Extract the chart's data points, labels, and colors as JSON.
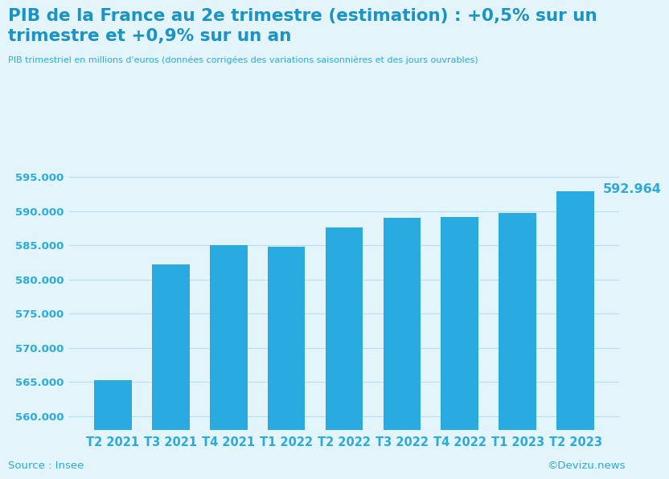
{
  "categories": [
    "T2 2021",
    "T3 2021",
    "T4 2021",
    "T1 2022",
    "T2 2022",
    "T3 2022",
    "T4 2022",
    "T1 2023",
    "T2 2023"
  ],
  "values": [
    565300,
    582200,
    585050,
    584800,
    587600,
    589000,
    589200,
    589700,
    592964
  ],
  "bar_color": "#29ABE2",
  "background_color": "#E3F4FB",
  "title_line1": "PIB de la France au 2e trimestre (estimation) : +0,5% sur un",
  "title_line2": "trimestre et +0,9% sur un an",
  "subtitle": "PIB trimestriel en millions d'euros (données corrigées des variations saisonnières et des jours ouvrables)",
  "source_left": "Source : Insee",
  "source_right": "©Devizu.news",
  "ylim_min": 558000,
  "ylim_max": 597500,
  "yticks": [
    560000,
    565000,
    570000,
    575000,
    580000,
    585000,
    590000,
    595000
  ],
  "last_label_value": "592.964",
  "title_color": "#1993C8",
  "axis_color": "#29ABE2",
  "grid_color": "#B8DFF0",
  "title_fontsize": 15.5,
  "subtitle_fontsize": 8.0,
  "tick_fontsize": 9.5,
  "xtick_fontsize": 10.5
}
